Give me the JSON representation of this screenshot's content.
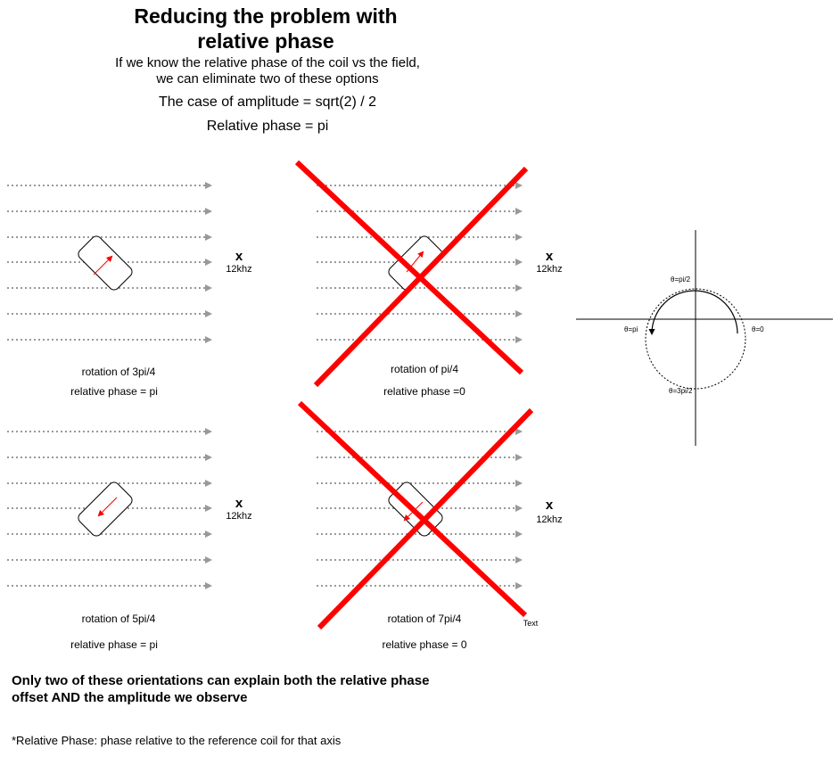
{
  "header": {
    "title_line1": "Reducing the problem with",
    "title_line2": "relative phase",
    "subtitle_line1": "If we know the relative phase of the coil vs the field,",
    "subtitle_line2": "we can eliminate two of these options",
    "amplitude_case": "The case of amplitude = sqrt(2) / 2",
    "relative_phase": "Relative phase = pi"
  },
  "panels": [
    {
      "rotation": "rotation of 3pi/4",
      "phase": "relative phase = pi",
      "x": "x",
      "freq": "12khz",
      "crossed": false
    },
    {
      "rotation": "rotation of pi/4",
      "phase": "relative phase =0",
      "x": "x",
      "freq": "12khz",
      "crossed": true
    },
    {
      "rotation": "rotation of 5pi/4",
      "phase": "relative phase = pi",
      "x": "x",
      "freq": "12khz",
      "crossed": false
    },
    {
      "rotation": "rotation of 7pi/4",
      "phase": "relative phase = 0",
      "x": "x",
      "freq": "12khz",
      "crossed": true
    }
  ],
  "unit_circle": {
    "top": "θ=pi/2",
    "left": "θ=pi",
    "right": "θ=0",
    "bottom": "θ=3pi/2"
  },
  "text_label": "Text",
  "conclusion_line1": "Only two of these orientations can explain both the relative phase",
  "conclusion_line2": "offset AND the amplitude we observe",
  "footnote": "*Relative Phase: phase relative to the reference coil for that axis",
  "colors": {
    "cross": "#ff0000",
    "arrow_line": "#999999",
    "coil_arrow": "#ff0000"
  }
}
